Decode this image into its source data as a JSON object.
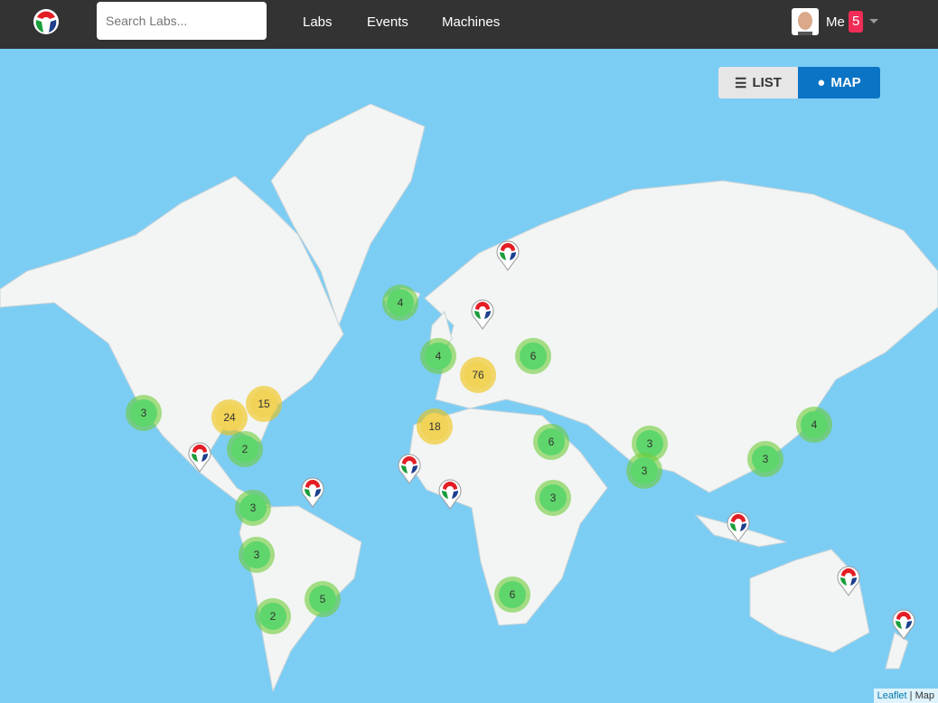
{
  "nav": {
    "search_placeholder": "Search Labs...",
    "links": [
      "Labs",
      "Events",
      "Machines"
    ],
    "user": "Me",
    "notification_count": "5"
  },
  "view_toggle": {
    "list": "LIST",
    "map": "MAP",
    "active": "MAP"
  },
  "colors": {
    "navbar": "#333333",
    "water": "#7ccdf4",
    "land": "#f2f5f3",
    "cluster_small": "#5ed66b",
    "cluster_large": "#f1d357",
    "active": "#0b74c4"
  },
  "clusters": [
    "4",
    "4",
    "6",
    "76",
    "3",
    "15",
    "24",
    "2",
    "18",
    "6",
    "3",
    "3",
    "3",
    "4",
    "3",
    "3",
    "3",
    "5",
    "2",
    "6"
  ],
  "attribution": {
    "link": "Leaflet",
    "separator": "|",
    "text": "Map"
  }
}
